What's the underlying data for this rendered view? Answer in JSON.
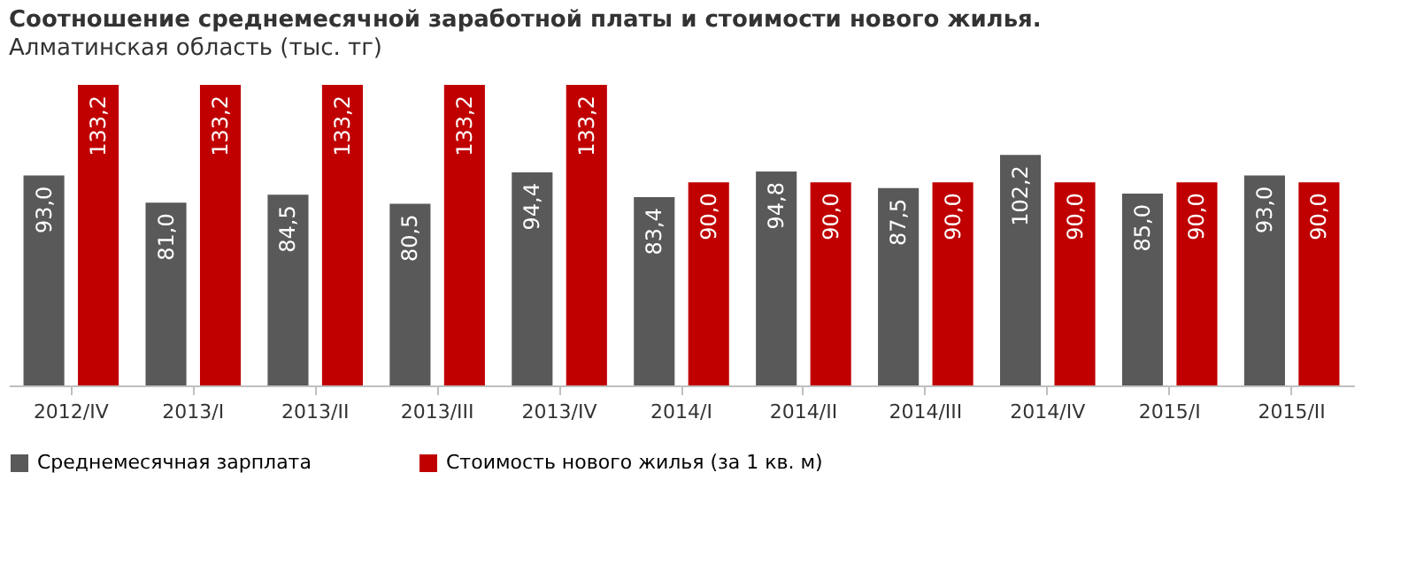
{
  "chart_data": {
    "type": "bar",
    "title": "Соотношение среднемесячной заработной платы и стоимости нового жилья.",
    "subtitle": "Алматинская область (тыс. тг)",
    "categories": [
      "2012/IV",
      "2013/I",
      "2013/II",
      "2013/III",
      "2013/IV",
      "2014/I",
      "2014/II",
      "2014/III",
      "2014/IV",
      "2015/I",
      "2015/II"
    ],
    "series": [
      {
        "name": "Среднемесячная зарплата",
        "color": "#595959",
        "values": [
          93.0,
          81.0,
          84.5,
          80.5,
          94.4,
          83.4,
          94.8,
          87.5,
          102.2,
          85.0,
          93.0
        ],
        "value_labels": [
          "93,0",
          "81,0",
          "84,5",
          "80,5",
          "94,4",
          "83,4",
          "94,8",
          "87,5",
          "102,2",
          "85,0",
          "93,0"
        ]
      },
      {
        "name": "Стоимость нового жилья (за 1 кв. м)",
        "color": "#c00000",
        "values": [
          133.2,
          133.2,
          133.2,
          133.2,
          133.2,
          90.0,
          90.0,
          90.0,
          90.0,
          90.0,
          90.0
        ],
        "value_labels": [
          "133,2",
          "133,2",
          "133,2",
          "133,2",
          "133,2",
          "90,0",
          "90,0",
          "90,0",
          "90,0",
          "90,0",
          "90,0"
        ]
      }
    ],
    "legend": "bottom",
    "grid": false,
    "tick_labels": "x"
  }
}
